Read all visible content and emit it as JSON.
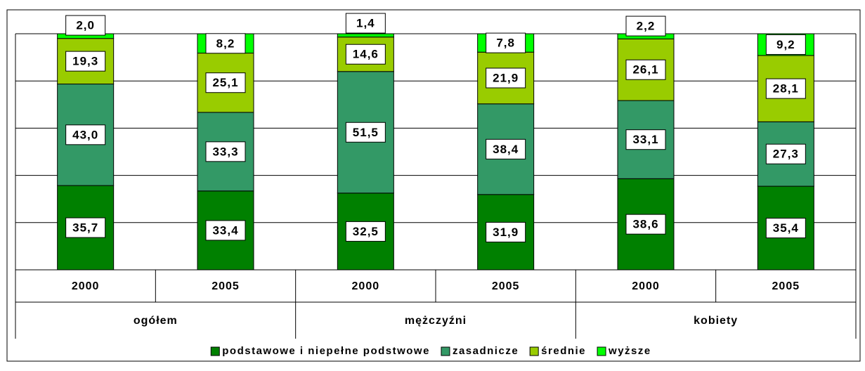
{
  "chart_data": {
    "type": "stacked-bar",
    "categories": [
      "2000",
      "2005",
      "2000",
      "2005",
      "2000",
      "2005"
    ],
    "groups": [
      "ogółem",
      "mężczyźni",
      "kobiety"
    ],
    "series": [
      {
        "name": "podstawowe i niepełne podstwowe",
        "color": "#008000",
        "values": [
          35.7,
          33.4,
          32.5,
          31.9,
          38.6,
          35.4
        ],
        "value_labels": [
          "35,7",
          "33,4",
          "32,5",
          "31,9",
          "38,6",
          "35,4"
        ]
      },
      {
        "name": "zasadnicze",
        "color": "#339966",
        "values": [
          43.0,
          33.3,
          51.5,
          38.4,
          33.1,
          27.3
        ],
        "value_labels": [
          "43,0",
          "33,3",
          "51,5",
          "38,4",
          "33,1",
          "27,3"
        ]
      },
      {
        "name": "średnie",
        "color": "#99cc00",
        "values": [
          19.3,
          25.1,
          14.6,
          21.9,
          26.1,
          28.1
        ],
        "value_labels": [
          "19,3",
          "25,1",
          "14,6",
          "21,9",
          "26,1",
          "28,1"
        ]
      },
      {
        "name": "wyższe",
        "color": "#00ff00",
        "values": [
          2.0,
          8.2,
          1.4,
          7.8,
          2.2,
          9.2
        ],
        "value_labels": [
          "2,0",
          "8,2",
          "1,4",
          "7,8",
          "2,2",
          "9,2"
        ]
      }
    ],
    "ylim": [
      0,
      100
    ],
    "yticks": [
      0,
      20,
      40,
      60,
      80,
      100
    ],
    "grid": true,
    "legend": "bottom"
  }
}
